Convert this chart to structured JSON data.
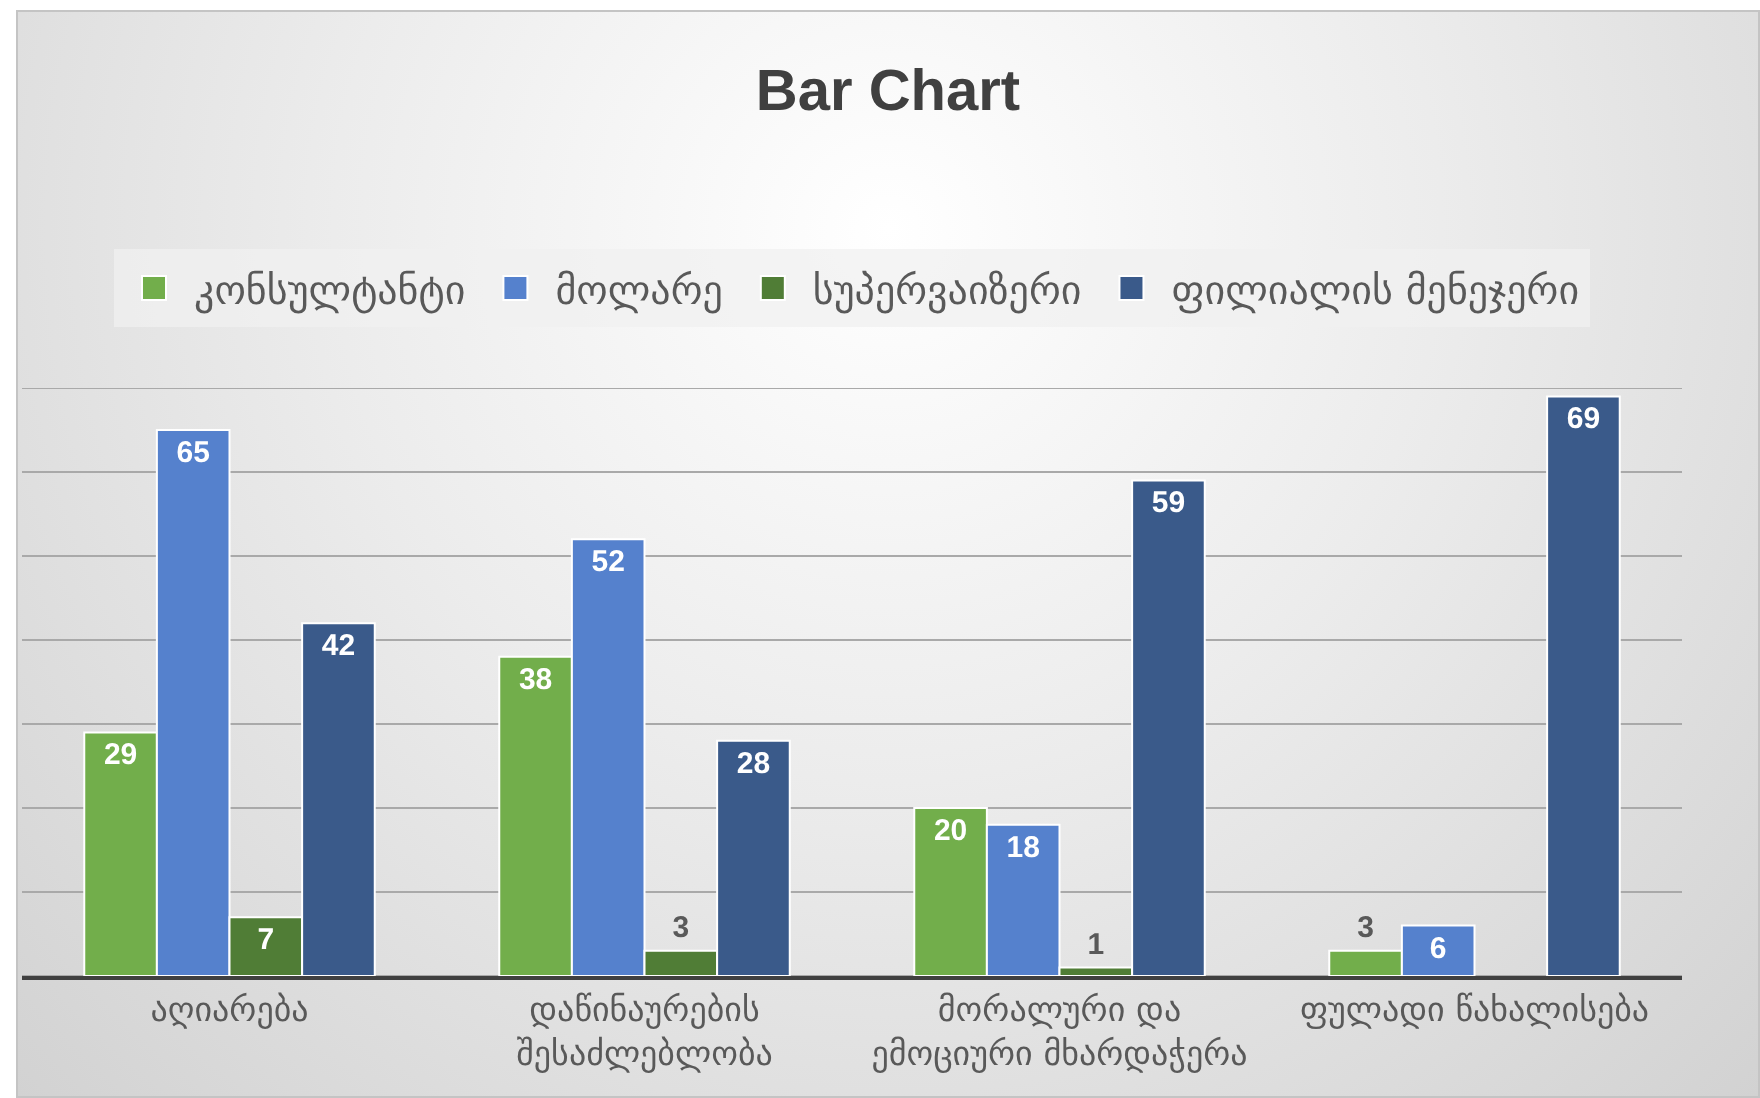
{
  "chart_data": {
    "type": "bar",
    "title": "Bar Chart",
    "categories": [
      "აღიარება",
      "დაწინაურების შესაძლებლობა",
      "მორალური და ემოციური მხარდაჭერა",
      "ფულადი წახალისება"
    ],
    "series": [
      {
        "name": "კონსულტანტი",
        "color": "#72ae4b",
        "values": [
          29,
          38,
          20,
          3
        ]
      },
      {
        "name": "მოლარე",
        "color": "#5581cd",
        "values": [
          65,
          52,
          18,
          6
        ]
      },
      {
        "name": "სუპერვაიზერი",
        "color": "#507d36",
        "values": [
          7,
          3,
          1,
          null
        ]
      },
      {
        "name": "ფილიალის მენეჯერი",
        "color": "#3a5a8a",
        "values": [
          42,
          28,
          59,
          69
        ]
      }
    ],
    "ylim": [
      0,
      70
    ],
    "yticks": [
      {
        "value": 0,
        "label": null
      },
      {
        "value": 10,
        "label": null
      },
      {
        "value": 20,
        "label": null
      },
      {
        "value": 30,
        "label": null
      },
      {
        "value": 40,
        "label": null
      },
      {
        "value": 50,
        "label": null
      },
      {
        "value": 60,
        "label": null
      },
      {
        "value": 70,
        "label": null
      }
    ],
    "grid": "y",
    "legend": "top",
    "data_labels": true,
    "tick_labels": "x"
  }
}
